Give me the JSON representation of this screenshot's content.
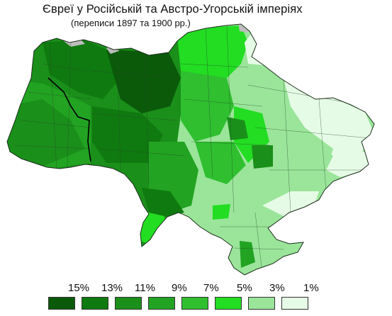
{
  "title": "Євреї у Російській та Австро-Угорській імперіях",
  "subtitle": "(переписи 1897 та 1900 рр.)",
  "legend": {
    "labels": [
      "15%",
      "13%",
      "11%",
      "9%",
      "7%",
      "5%",
      "3%",
      "1%"
    ],
    "colors": [
      "#0a5a0a",
      "#0f7a0f",
      "#1a8f1a",
      "#22a322",
      "#2fbf2f",
      "#22dd22",
      "#9ae59a",
      "#e6fbe6"
    ]
  },
  "map_colors": {
    "border": "#2a4a2a",
    "no_data": "#bdbdbd"
  }
}
